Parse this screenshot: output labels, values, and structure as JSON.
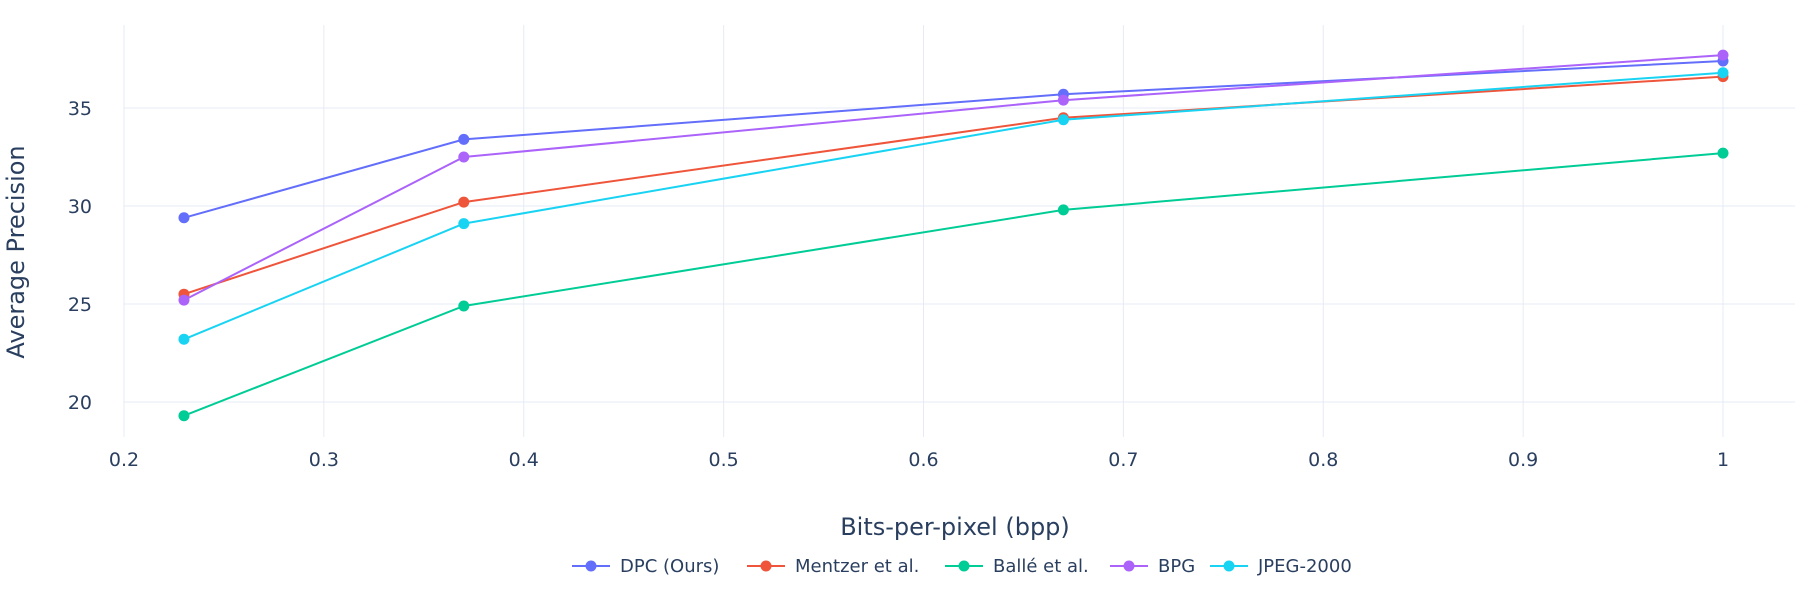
{
  "chart_data": {
    "type": "line",
    "title": "",
    "xlabel": "Bits-per-pixel (bpp)",
    "ylabel": "Average Precision",
    "xlim": [
      0.2,
      1.0
    ],
    "ylim": [
      18,
      38.5
    ],
    "xticks": [
      0.2,
      0.3,
      0.4,
      0.5,
      0.6,
      0.7,
      0.8,
      0.9,
      1.0
    ],
    "xtick_labels": [
      "0.2",
      "0.3",
      "0.4",
      "0.5",
      "0.6",
      "0.7",
      "0.8",
      "0.9",
      "1"
    ],
    "yticks": [
      20,
      25,
      30,
      35
    ],
    "ytick_labels": [
      "20",
      "25",
      "30",
      "35"
    ],
    "grid": true,
    "legend_position": "bottom-center",
    "x": [
      0.23,
      0.37,
      0.67,
      1.0
    ],
    "series": [
      {
        "name": "DPC (Ours)",
        "color": "#636efa",
        "values": [
          29.4,
          33.4,
          35.7,
          37.4
        ]
      },
      {
        "name": "Mentzer et al.",
        "color": "#ef553b",
        "values": [
          25.5,
          30.2,
          34.5,
          36.6
        ]
      },
      {
        "name": "Ballé et al.",
        "color": "#00cc96",
        "values": [
          19.3,
          24.9,
          29.8,
          32.7
        ]
      },
      {
        "name": "BPG",
        "color": "#ab63fa",
        "values": [
          25.2,
          32.5,
          35.4,
          37.7
        ]
      },
      {
        "name": "JPEG-2000",
        "color": "#19d3f3",
        "values": [
          23.2,
          29.1,
          34.4,
          36.8
        ]
      }
    ]
  }
}
